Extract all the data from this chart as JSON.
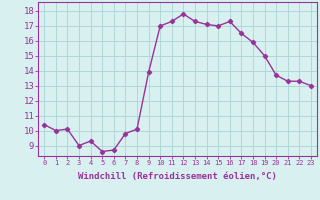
{
  "x": [
    0,
    1,
    2,
    3,
    4,
    5,
    6,
    7,
    8,
    9,
    10,
    11,
    12,
    13,
    14,
    15,
    16,
    17,
    18,
    19,
    20,
    21,
    22,
    23
  ],
  "y": [
    10.4,
    10.0,
    10.1,
    9.0,
    9.3,
    8.6,
    8.7,
    9.8,
    10.1,
    13.9,
    17.0,
    17.3,
    17.8,
    17.3,
    17.1,
    17.0,
    17.3,
    16.5,
    15.9,
    15.0,
    13.7,
    13.3,
    13.3,
    13.0
  ],
  "line_color": "#993399",
  "marker": "D",
  "marker_size": 2.2,
  "linewidth": 1.0,
  "bg_color": "#d8f0f0",
  "grid_color": "#b0d8d8",
  "xlabel": "Windchill (Refroidissement éolien,°C)",
  "xlabel_fontsize": 6.5,
  "ytick_min": 9,
  "ytick_max": 18,
  "ytick_step": 1,
  "xtick_labels": [
    "0",
    "1",
    "2",
    "3",
    "4",
    "5",
    "6",
    "7",
    "8",
    "9",
    "10",
    "11",
    "12",
    "13",
    "14",
    "15",
    "16",
    "17",
    "18",
    "19",
    "20",
    "21",
    "22",
    "23"
  ],
  "ylim": [
    8.3,
    18.6
  ],
  "xlim": [
    -0.5,
    23.5
  ],
  "ytick_fontsize": 6.5,
  "xtick_fontsize": 5.0
}
